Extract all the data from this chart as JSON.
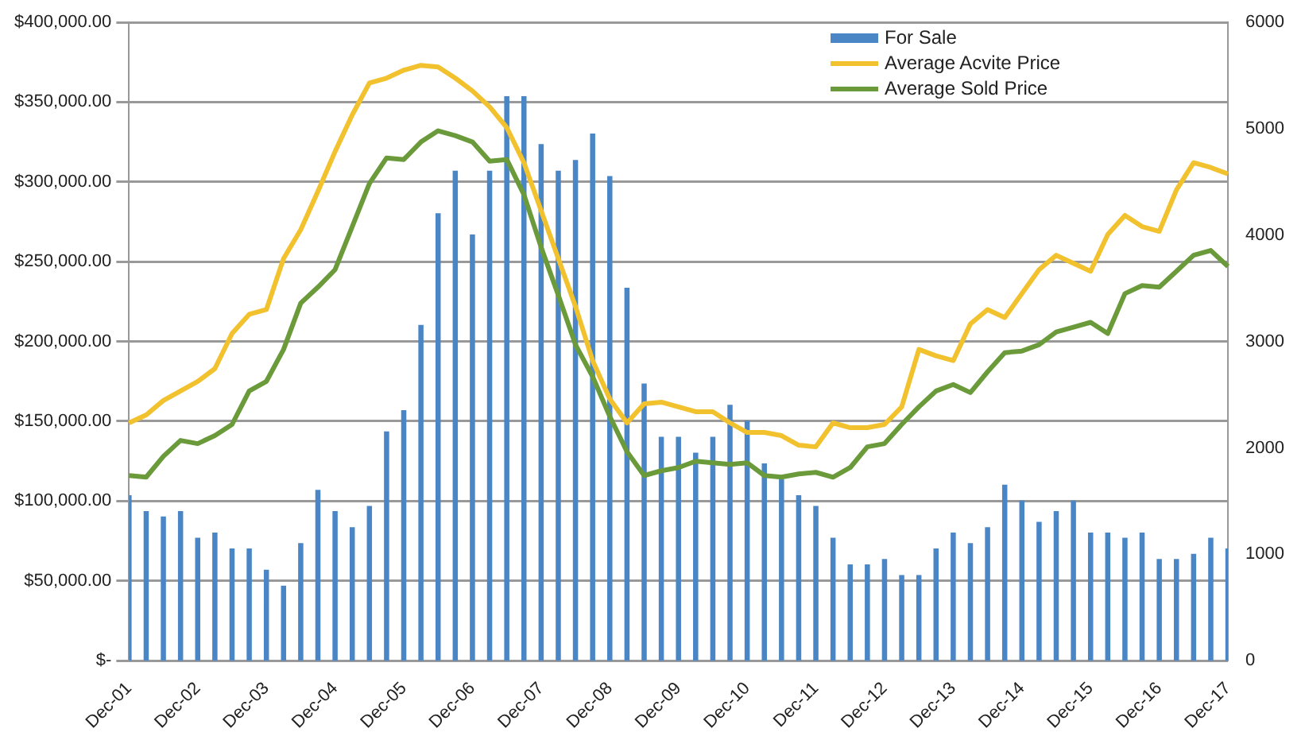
{
  "chart_data": {
    "type": "bar",
    "categories": [
      "Dec-01",
      null,
      null,
      null,
      "Dec-02",
      null,
      null,
      null,
      "Dec-03",
      null,
      null,
      null,
      "Dec-04",
      null,
      null,
      null,
      "Dec-05",
      null,
      null,
      null,
      "Dec-06",
      null,
      null,
      null,
      "Dec-07",
      null,
      null,
      null,
      "Dec-08",
      null,
      null,
      null,
      "Dec-09",
      null,
      null,
      null,
      "Dec-10",
      null,
      null,
      null,
      "Dec-11",
      null,
      null,
      null,
      "Dec-12",
      null,
      null,
      null,
      "Dec-13",
      null,
      null,
      null,
      "Dec-14",
      null,
      null,
      null,
      "Dec-15",
      null,
      null,
      null,
      "Dec-16",
      null,
      null,
      null,
      "Dec-17"
    ],
    "series": [
      {
        "name": "For Sale",
        "axis": "y2",
        "color": "#4a86c5",
        "values": [
          1550,
          1400,
          1350,
          1400,
          1150,
          1200,
          1050,
          1050,
          850,
          700,
          1100,
          1600,
          1400,
          1250,
          1450,
          2150,
          2350,
          3150,
          4200,
          4600,
          4000,
          4600,
          5300,
          5300,
          4850,
          4600,
          4700,
          4950,
          4550,
          3500,
          2600,
          2100,
          2100,
          1950,
          2100,
          2400,
          2250,
          1850,
          1700,
          1550,
          1450,
          1150,
          900,
          900,
          950,
          800,
          800,
          1050,
          1200,
          1100,
          1250,
          1650,
          1500,
          1300,
          1400,
          1500,
          1200,
          1200,
          1150,
          1200,
          950,
          950,
          1000,
          1150,
          1050
        ]
      },
      {
        "name": "Average Acvite Price",
        "type": "line",
        "color": "#f2c12e",
        "values": [
          149000,
          154000,
          163000,
          169000,
          175000,
          183000,
          205000,
          217000,
          220000,
          252000,
          270000,
          294000,
          319000,
          342000,
          362000,
          365000,
          370000,
          373000,
          372000,
          365000,
          357000,
          347000,
          334000,
          312000,
          282000,
          252000,
          222000,
          188000,
          164000,
          149000,
          161000,
          162000,
          159000,
          156000,
          156000,
          149000,
          143000,
          143000,
          141000,
          135000,
          134000,
          149000,
          146000,
          146000,
          148000,
          159000,
          195000,
          191000,
          188000,
          211000,
          220000,
          215000,
          230000,
          245000,
          254000,
          249000,
          244000,
          267000,
          279000,
          272000,
          269000,
          295000,
          312000,
          309000,
          305000
        ]
      },
      {
        "name": "Average Sold Price",
        "type": "line",
        "color": "#6a9a3a",
        "values": [
          116000,
          115000,
          128000,
          138000,
          136000,
          141000,
          148000,
          169000,
          175000,
          195000,
          224000,
          234000,
          245000,
          272000,
          299000,
          315000,
          314000,
          325000,
          332000,
          329000,
          325000,
          313000,
          314000,
          292000,
          259000,
          229000,
          198000,
          178000,
          153000,
          131000,
          116000,
          119000,
          121000,
          125000,
          124000,
          123000,
          124000,
          116000,
          115000,
          117000,
          118000,
          115000,
          121000,
          134000,
          136000,
          148000,
          159000,
          169000,
          173000,
          168000,
          181000,
          193000,
          194000,
          198000,
          206000,
          209000,
          212000,
          205000,
          230000,
          235000,
          234000,
          244000,
          254000,
          257000,
          247000
        ]
      }
    ],
    "ylim": [
      0,
      400000
    ],
    "yticks": [
      {
        "value": 0,
        "label": "$-"
      },
      {
        "value": 50000,
        "label": "$50,000.00"
      },
      {
        "value": 100000,
        "label": "$100,000.00"
      },
      {
        "value": 150000,
        "label": "$150,000.00"
      },
      {
        "value": 200000,
        "label": "$200,000.00"
      },
      {
        "value": 250000,
        "label": "$250,000.00"
      },
      {
        "value": 300000,
        "label": "$300,000.00"
      },
      {
        "value": 350000,
        "label": "$350,000.00"
      },
      {
        "value": 400000,
        "label": "$400,000.00"
      }
    ],
    "y2lim": [
      0,
      6000
    ],
    "y2ticks": [
      0,
      1000,
      2000,
      3000,
      4000,
      5000,
      6000
    ],
    "grid": "y",
    "legend": "top right",
    "marker": "none"
  }
}
